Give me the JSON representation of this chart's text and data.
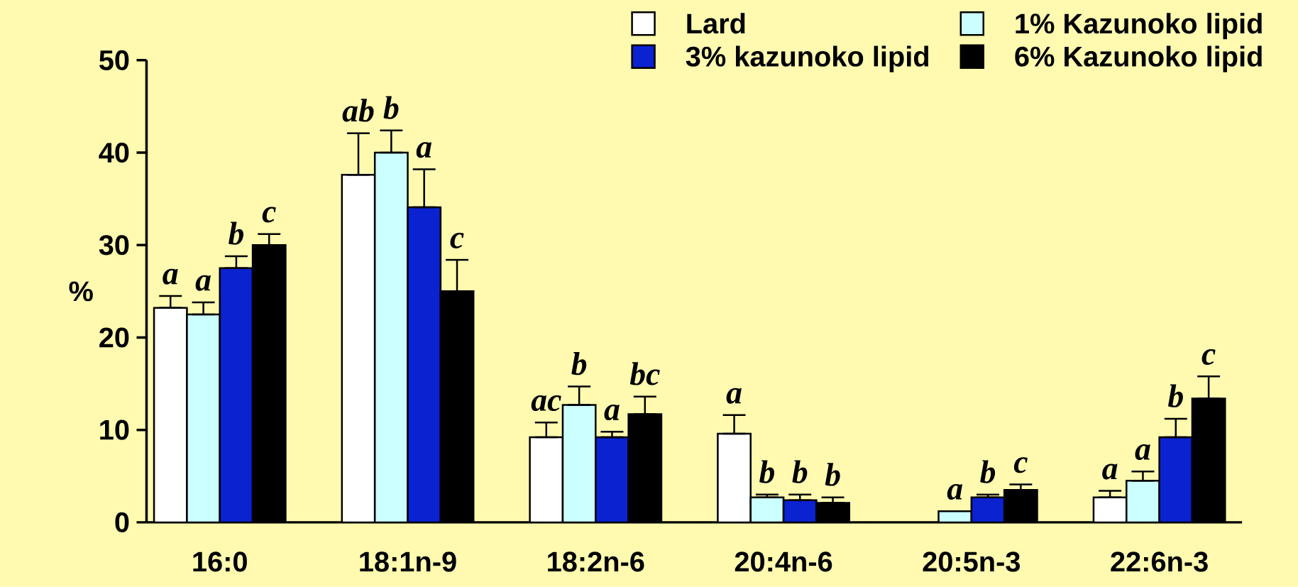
{
  "chart_data": {
    "type": "bar",
    "ylabel": "%",
    "categories": [
      "16:0",
      "18:1n-9",
      "18:2n-6",
      "20:4n-6",
      "20:5n-3",
      "22:6n-3"
    ],
    "ylim": [
      0,
      50
    ],
    "yticks": [
      0,
      10,
      20,
      30,
      40,
      50
    ],
    "grid": false,
    "legend": "top right",
    "series": [
      {
        "name": "Lard",
        "color": "#ffffff",
        "values": [
          23.2,
          37.6,
          9.2,
          9.6,
          null,
          2.7
        ],
        "errors": [
          [
            23.2,
            24.5
          ],
          [
            37.6,
            42.1
          ],
          [
            9.2,
            10.8
          ],
          [
            9.6,
            11.6
          ],
          null,
          [
            2.7,
            3.4
          ]
        ],
        "value_labels": [
          "a",
          "ab",
          "ac",
          "a",
          null,
          "a"
        ]
      },
      {
        "name": "1% Kazunoko lipid",
        "color": "#ccffff",
        "values": [
          22.5,
          40.0,
          12.7,
          2.7,
          1.2,
          4.5
        ],
        "errors": [
          [
            22.5,
            23.8
          ],
          [
            40.0,
            42.4
          ],
          [
            12.7,
            14.7
          ],
          [
            2.7,
            3.0
          ],
          null,
          [
            4.5,
            5.5
          ]
        ],
        "value_labels": [
          "a",
          "b",
          "b",
          "b",
          "a",
          "a"
        ]
      },
      {
        "name": "3% kazunoko lipid",
        "color": "#0a22d0",
        "values": [
          27.5,
          34.1,
          9.2,
          2.4,
          2.7,
          9.2
        ],
        "errors": [
          [
            27.5,
            28.8
          ],
          [
            34.1,
            38.2
          ],
          [
            9.2,
            9.8
          ],
          [
            2.4,
            3.0
          ],
          [
            2.7,
            3.0
          ],
          [
            9.2,
            11.2
          ]
        ],
        "value_labels": [
          "b",
          "a",
          "a",
          "b",
          "b",
          "b"
        ]
      },
      {
        "name": "6% Kazunoko lipid",
        "color": "#000000",
        "values": [
          30.0,
          25.0,
          11.7,
          2.1,
          3.5,
          13.4
        ],
        "errors": [
          [
            30.0,
            31.2
          ],
          [
            25.0,
            28.4
          ],
          [
            11.7,
            13.6
          ],
          [
            2.1,
            2.7
          ],
          [
            3.5,
            4.1
          ],
          [
            13.4,
            15.8
          ]
        ],
        "value_labels": [
          "c",
          "c",
          "bc",
          "b",
          "c",
          "c"
        ]
      }
    ]
  }
}
